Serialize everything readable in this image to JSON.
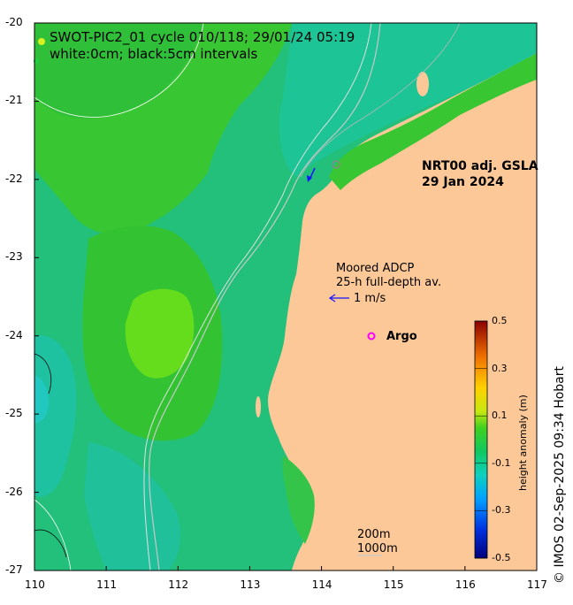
{
  "map": {
    "title": "SWOT-PIC2_01 cycle 010/118; 29/01/24 05:19",
    "subtitle": "white:0cm; black:5cm intervals",
    "product": "NRT00 adj. GSLA",
    "product_date": "29 Jan 2024",
    "adcp_label_1": "Moored ADCP",
    "adcp_label_2": "25-h full-depth av.",
    "scale_speed": "1 m/s",
    "argo_label": "Argo",
    "isobath_1": "200m",
    "isobath_2": "1000m",
    "credit": "© IMOS 02-Sep-2025 09:34 Hobart",
    "lon_ticks": [
      "110",
      "111",
      "112",
      "113",
      "114",
      "115",
      "116",
      "117"
    ],
    "lat_ticks": [
      "-20",
      "-21",
      "-22",
      "-23",
      "-24",
      "-25",
      "-26",
      "-27"
    ],
    "extent": {
      "lon": [
        110,
        117
      ],
      "lat": [
        -27,
        -20
      ]
    },
    "colors": {
      "land": "#fcc898",
      "ocean_green": "#33c833",
      "ocean_teal": "#1ec896",
      "argo": "#ff00ff",
      "adcp_arrow": "#1414ff"
    }
  },
  "colorbar": {
    "title": "height anomaly (m)",
    "ticks": [
      "0.5",
      "0.3",
      "0.1",
      "-0.1",
      "-0.3",
      "-0.5"
    ],
    "range": [
      -0.5,
      0.5
    ]
  }
}
